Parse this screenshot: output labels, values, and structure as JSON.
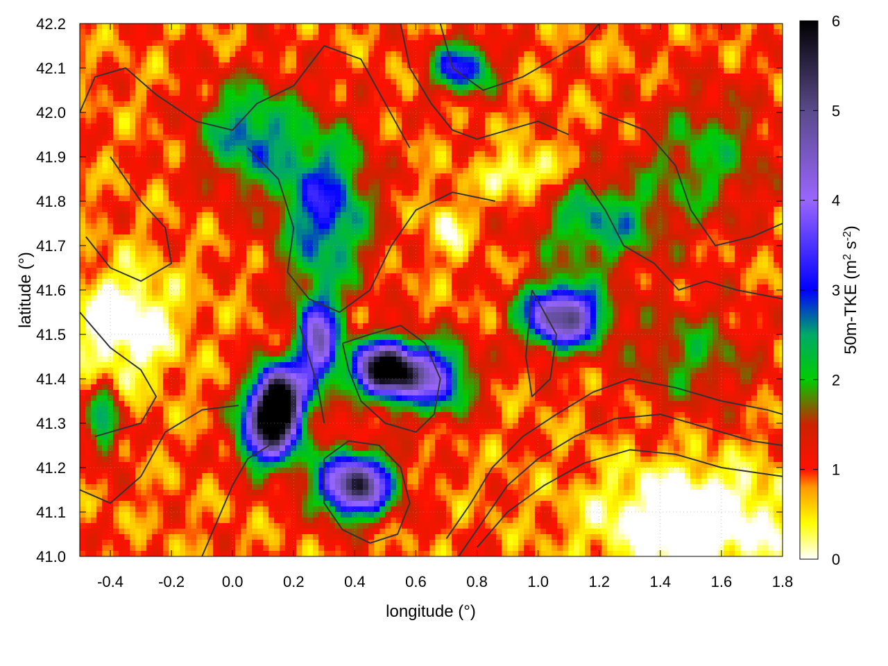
{
  "chart_data": {
    "type": "heatmap",
    "xlabel": "longitude (°)",
    "ylabel": "latitude (°)",
    "colorbar_label_parts": [
      "50m-TKE (m",
      "2",
      " s",
      "-2",
      ")"
    ],
    "xlim": [
      -0.5,
      1.8
    ],
    "ylim": [
      41.0,
      42.2
    ],
    "x_ticks": [
      "-0.4",
      "-0.2",
      "0.0",
      "0.2",
      "0.4",
      "0.6",
      "0.8",
      "1.0",
      "1.2",
      "1.4",
      "1.6",
      "1.8"
    ],
    "x_tick_values": [
      -0.4,
      -0.2,
      0.0,
      0.2,
      0.4,
      0.6,
      0.8,
      1.0,
      1.2,
      1.4,
      1.6,
      1.8
    ],
    "y_ticks": [
      "41.0",
      "41.1",
      "41.2",
      "41.3",
      "41.4",
      "41.5",
      "41.6",
      "41.7",
      "41.8",
      "41.9",
      "42.0",
      "42.1",
      "42.2"
    ],
    "y_tick_values": [
      41.0,
      41.1,
      41.2,
      41.3,
      41.4,
      41.5,
      41.6,
      41.7,
      41.8,
      41.9,
      42.0,
      42.1,
      42.2
    ],
    "colorbar_ticks": [
      "0",
      "1",
      "2",
      "3",
      "4",
      "5",
      "6"
    ],
    "colorbar_tick_values": [
      0,
      1,
      2,
      3,
      4,
      5,
      6
    ],
    "colorbar_range": [
      0,
      6
    ],
    "colormap": [
      {
        "v": 0.0,
        "color": "#ffffff"
      },
      {
        "v": 0.4,
        "color": "#ffff00"
      },
      {
        "v": 0.8,
        "color": "#ff9900"
      },
      {
        "v": 1.0,
        "color": "#ff1100"
      },
      {
        "v": 1.5,
        "color": "#cc2200"
      },
      {
        "v": 2.0,
        "color": "#00cc00"
      },
      {
        "v": 2.5,
        "color": "#00aa66"
      },
      {
        "v": 3.0,
        "color": "#0000ff"
      },
      {
        "v": 4.0,
        "color": "#9966ff"
      },
      {
        "v": 5.0,
        "color": "#5a4a8a"
      },
      {
        "v": 6.0,
        "color": "#000000"
      }
    ],
    "grid": true,
    "contour_color": "#333333",
    "tke_features": [
      {
        "lon": 0.5,
        "lat": 41.42,
        "amp": 5.6,
        "slon": 0.1,
        "slat": 0.06
      },
      {
        "lon": 0.15,
        "lat": 41.36,
        "amp": 5.0,
        "slon": 0.08,
        "slat": 0.07
      },
      {
        "lon": 0.4,
        "lat": 41.16,
        "amp": 4.6,
        "slon": 0.12,
        "slat": 0.07
      },
      {
        "lon": 0.12,
        "lat": 41.28,
        "amp": 4.0,
        "slon": 0.1,
        "slat": 0.08
      },
      {
        "lon": 1.08,
        "lat": 41.54,
        "amp": 4.2,
        "slon": 0.13,
        "slat": 0.07
      },
      {
        "lon": 0.28,
        "lat": 41.48,
        "amp": 3.4,
        "slon": 0.07,
        "slat": 0.1
      },
      {
        "lon": 0.66,
        "lat": 41.4,
        "amp": 2.8,
        "slon": 0.12,
        "slat": 0.08
      },
      {
        "lon": 0.3,
        "lat": 41.78,
        "amp": 2.2,
        "slon": 0.15,
        "slat": 0.18
      },
      {
        "lon": 0.05,
        "lat": 41.95,
        "amp": 1.8,
        "slon": 0.16,
        "slat": 0.12
      },
      {
        "lon": 0.75,
        "lat": 42.1,
        "amp": 2.4,
        "slon": 0.1,
        "slat": 0.06
      },
      {
        "lon": 1.2,
        "lat": 41.75,
        "amp": 1.6,
        "slon": 0.2,
        "slat": 0.1
      },
      {
        "lon": -0.42,
        "lat": 41.3,
        "amp": 1.8,
        "slon": 0.05,
        "slat": 0.08
      },
      {
        "lon": 1.55,
        "lat": 41.9,
        "amp": 1.1,
        "slon": 0.2,
        "slat": 0.15
      },
      {
        "lon": 1.5,
        "lat": 41.45,
        "amp": 1.0,
        "slon": 0.2,
        "slat": 0.12
      }
    ],
    "tke_lows": [
      {
        "lon": -0.35,
        "lat": 41.52,
        "amp": 1.3,
        "slon": 0.16,
        "slat": 0.12
      },
      {
        "lon": 1.5,
        "lat": 41.08,
        "amp": 1.5,
        "slon": 0.3,
        "slat": 0.12
      },
      {
        "lon": 0.95,
        "lat": 41.86,
        "amp": 1.0,
        "slon": 0.12,
        "slat": 0.05
      },
      {
        "lon": 0.7,
        "lat": 41.74,
        "amp": 0.8,
        "slon": 0.06,
        "slat": 0.06
      }
    ],
    "contours": [
      [
        [
          -0.5,
          42.0
        ],
        [
          -0.45,
          42.08
        ],
        [
          -0.35,
          42.1
        ],
        [
          -0.25,
          42.04
        ],
        [
          -0.12,
          41.98
        ],
        [
          0.0,
          41.96
        ],
        [
          0.08,
          42.02
        ],
        [
          0.2,
          42.06
        ],
        [
          0.3,
          42.15
        ],
        [
          0.42,
          42.12
        ],
        [
          0.5,
          42.02
        ],
        [
          0.58,
          41.92
        ]
      ],
      [
        [
          -0.4,
          41.9
        ],
        [
          -0.3,
          41.8
        ],
        [
          -0.22,
          41.74
        ],
        [
          -0.2,
          41.66
        ],
        [
          -0.3,
          41.62
        ],
        [
          -0.4,
          41.65
        ],
        [
          -0.48,
          41.72
        ]
      ],
      [
        [
          -0.5,
          41.55
        ],
        [
          -0.4,
          41.47
        ],
        [
          -0.3,
          41.42
        ],
        [
          -0.25,
          41.36
        ],
        [
          -0.3,
          41.3
        ],
        [
          -0.45,
          41.27
        ]
      ],
      [
        [
          0.05,
          41.92
        ],
        [
          0.15,
          41.85
        ],
        [
          0.2,
          41.74
        ],
        [
          0.18,
          41.64
        ],
        [
          0.25,
          41.58
        ],
        [
          0.35,
          41.55
        ],
        [
          0.45,
          41.6
        ],
        [
          0.52,
          41.7
        ],
        [
          0.6,
          41.78
        ],
        [
          0.72,
          41.82
        ],
        [
          0.86,
          41.8
        ]
      ],
      [
        [
          0.22,
          41.52
        ],
        [
          0.25,
          41.45
        ],
        [
          0.28,
          41.38
        ],
        [
          0.3,
          41.3
        ]
      ],
      [
        [
          0.36,
          41.48
        ],
        [
          0.45,
          41.5
        ],
        [
          0.55,
          41.52
        ],
        [
          0.63,
          41.48
        ],
        [
          0.68,
          41.4
        ],
        [
          0.66,
          41.32
        ],
        [
          0.6,
          41.28
        ],
        [
          0.5,
          41.3
        ],
        [
          0.42,
          41.35
        ],
        [
          0.38,
          41.42
        ],
        [
          0.36,
          41.48
        ]
      ],
      [
        [
          0.3,
          41.22
        ],
        [
          0.38,
          41.26
        ],
        [
          0.48,
          41.25
        ],
        [
          0.55,
          41.2
        ],
        [
          0.58,
          41.12
        ],
        [
          0.54,
          41.05
        ],
        [
          0.45,
          41.03
        ],
        [
          0.36,
          41.06
        ],
        [
          0.3,
          41.12
        ],
        [
          0.3,
          41.22
        ]
      ],
      [
        [
          0.7,
          41.04
        ],
        [
          0.78,
          41.12
        ],
        [
          0.85,
          41.2
        ],
        [
          0.95,
          41.27
        ],
        [
          1.06,
          41.32
        ],
        [
          1.18,
          41.37
        ],
        [
          1.3,
          41.4
        ],
        [
          1.45,
          41.38
        ],
        [
          1.6,
          41.35
        ],
        [
          1.75,
          41.33
        ],
        [
          1.8,
          41.32
        ]
      ],
      [
        [
          0.74,
          41.0
        ],
        [
          0.82,
          41.08
        ],
        [
          0.9,
          41.16
        ],
        [
          1.0,
          41.22
        ],
        [
          1.12,
          41.27
        ],
        [
          1.25,
          41.31
        ],
        [
          1.4,
          41.32
        ],
        [
          1.55,
          41.29
        ],
        [
          1.7,
          41.26
        ],
        [
          1.8,
          41.25
        ]
      ],
      [
        [
          0.8,
          41.02
        ],
        [
          0.9,
          41.1
        ],
        [
          1.02,
          41.16
        ],
        [
          1.15,
          41.21
        ],
        [
          1.3,
          41.24
        ],
        [
          1.45,
          41.23
        ],
        [
          1.6,
          41.2
        ],
        [
          1.8,
          41.18
        ]
      ],
      [
        [
          0.98,
          41.6
        ],
        [
          1.06,
          41.5
        ],
        [
          1.04,
          41.4
        ],
        [
          0.98,
          41.36
        ],
        [
          0.96,
          41.45
        ],
        [
          0.98,
          41.6
        ]
      ],
      [
        [
          0.68,
          42.2
        ],
        [
          0.72,
          42.1
        ],
        [
          0.82,
          42.05
        ],
        [
          0.95,
          42.08
        ],
        [
          1.05,
          42.12
        ],
        [
          1.15,
          42.16
        ],
        [
          1.2,
          42.2
        ]
      ],
      [
        [
          1.2,
          42.0
        ],
        [
          1.35,
          41.96
        ],
        [
          1.45,
          41.88
        ],
        [
          1.5,
          41.78
        ],
        [
          1.58,
          41.7
        ],
        [
          1.7,
          41.72
        ],
        [
          1.8,
          41.75
        ]
      ],
      [
        [
          1.15,
          41.85
        ],
        [
          1.22,
          41.78
        ],
        [
          1.28,
          41.7
        ],
        [
          1.38,
          41.66
        ],
        [
          1.46,
          41.6
        ],
        [
          1.55,
          41.62
        ],
        [
          1.65,
          41.6
        ],
        [
          1.8,
          41.58
        ]
      ],
      [
        [
          -0.5,
          41.15
        ],
        [
          -0.4,
          41.12
        ],
        [
          -0.3,
          41.18
        ],
        [
          -0.22,
          41.28
        ],
        [
          -0.1,
          41.33
        ],
        [
          0.02,
          41.34
        ]
      ],
      [
        [
          -0.1,
          41.0
        ],
        [
          -0.05,
          41.08
        ],
        [
          0.0,
          41.16
        ],
        [
          0.05,
          41.22
        ],
        [
          0.12,
          41.25
        ]
      ],
      [
        [
          0.55,
          42.2
        ],
        [
          0.58,
          42.1
        ],
        [
          0.65,
          42.02
        ],
        [
          0.72,
          41.96
        ],
        [
          0.8,
          41.94
        ],
        [
          0.9,
          41.96
        ],
        [
          1.0,
          41.98
        ],
        [
          1.1,
          41.95
        ]
      ]
    ]
  }
}
